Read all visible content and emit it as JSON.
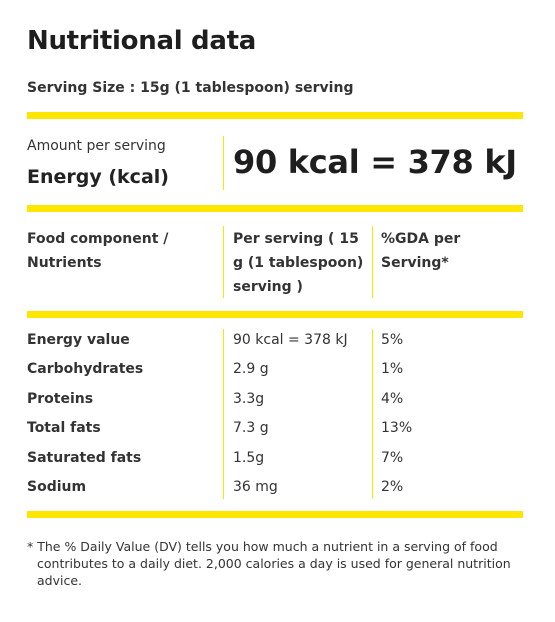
{
  "title": "Nutritional data",
  "serving_size": "Serving Size : 15g (1 tablespoon) serving",
  "energy": {
    "amount_label": "Amount per serving",
    "label": "Energy (kcal)",
    "value": "90 kcal = 378 kJ"
  },
  "table": {
    "headers": [
      "Food component / Nutrients",
      "Per serving ( 15 g (1 tablespoon) serving )",
      "%GDA per Serving*"
    ],
    "rows": [
      {
        "name": "Energy value",
        "value": "90 kcal = 378 kJ",
        "gda": "5%"
      },
      {
        "name": "Carbohydrates",
        "value": "2.9 g",
        "gda": "1%"
      },
      {
        "name": "Proteins",
        "value": "3.3g",
        "gda": "4%"
      },
      {
        "name": "Total fats",
        "value": "7.3 g",
        "gda": "13%"
      },
      {
        "name": "Saturated fats",
        "value": "1.5g",
        "gda": "7%"
      },
      {
        "name": "Sodium",
        "value": "36 mg",
        "gda": "2%"
      }
    ]
  },
  "footnote": "* The % Daily Value (DV) tells you how much a nutrient in a serving of food contributes to a daily diet. 2,000 calories a day is used for general nutrition advice.",
  "colors": {
    "accent": "#ffe600",
    "text": "#333333"
  }
}
